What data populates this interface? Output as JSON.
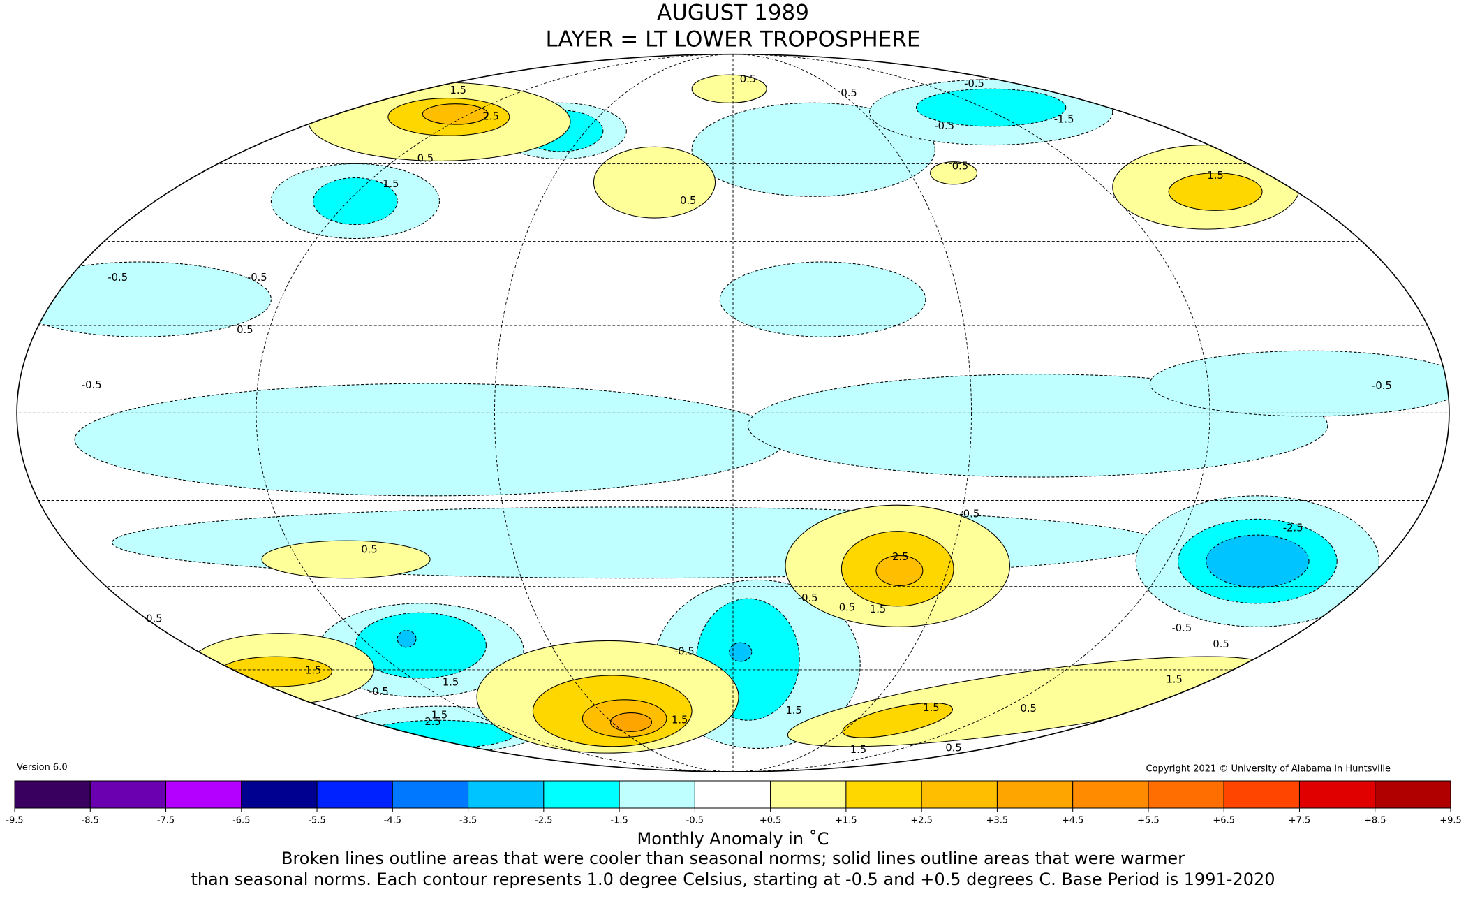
{
  "header": {
    "title": [
      "AUGUST 1989",
      "LAYER = LT LOWER TROPOSPHERE"
    ]
  },
  "map": {
    "contour_labels": [
      "1.5",
      "2.5",
      "0.5",
      "1.5",
      "-0.5",
      "-0.5",
      "0.5",
      "-0.5",
      "0.5",
      "0.5",
      "0.5",
      "-0.5",
      "-1.5",
      "-0.5",
      "1.5",
      "0.5",
      "-0.5",
      "2.5",
      "1.5",
      "0.5",
      "-0.5",
      "-2.5",
      "-0.5",
      "0.5",
      "1.5",
      "0.5",
      "1.5",
      "-0.5",
      "1.5",
      "2.5",
      "1.5",
      "1.5",
      "1.5",
      "1.5",
      "1.5",
      "0.5",
      "0.5",
      "-0.5",
      "0.5",
      "-0.5"
    ]
  },
  "version": "Version 6.0",
  "copyright": "Copyright 2021 © University of Alabama in Huntsville",
  "colorbar": {
    "label": "Monthly Anomaly in ˚C",
    "colors": [
      "#3a0060",
      "#6a00b0",
      "#b400ff",
      "#000090",
      "#0022ff",
      "#0078ff",
      "#00c4ff",
      "#00ffff",
      "#bfffff",
      "#ffffff",
      "#ffff99",
      "#ffd700",
      "#ffbf00",
      "#ffa500",
      "#ff8c00",
      "#ff6e00",
      "#ff4500",
      "#e00000",
      "#b00000"
    ],
    "ticks": [
      -9.5,
      -8.5,
      -7.5,
      -6.5,
      -5.5,
      -4.5,
      -3.5,
      -2.5,
      -1.5,
      -0.5,
      {
        "value": 0.5,
        "label": "+0.5"
      },
      {
        "value": 1.5,
        "label": "+1.5"
      },
      {
        "value": 2.5,
        "label": "+2.5"
      },
      {
        "value": 3.5,
        "label": "+3.5"
      },
      {
        "value": 4.5,
        "label": "+4.5"
      },
      {
        "value": 5.5,
        "label": "+5.5"
      },
      {
        "value": 6.5,
        "label": "+6.5"
      },
      {
        "value": 7.5,
        "label": "+7.5"
      },
      {
        "value": 8.5,
        "label": "+8.5"
      },
      {
        "value": 9.5,
        "label": "+9.5"
      }
    ]
  },
  "caption": [
    "Broken lines outline areas that were cooler than seasonal norms; solid lines outline areas that were warmer",
    "than seasonal norms. Each contour represents 1.0 degree Celsius, starting at -0.5 and +0.5 degrees C. Base Period is 1991-2020"
  ]
}
